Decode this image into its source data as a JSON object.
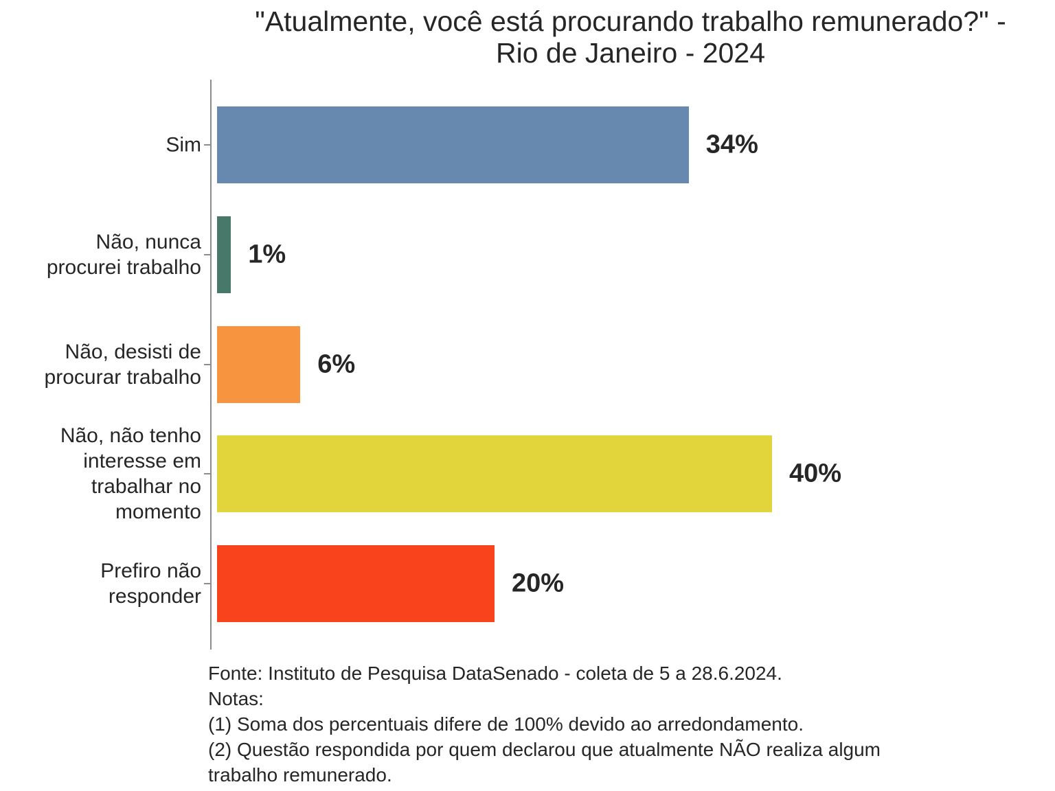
{
  "title": {
    "line1": "\"Atualmente, você está procurando trabalho remunerado?\" -",
    "line2": "Rio de Janeiro - 2024"
  },
  "chart_data": {
    "type": "bar",
    "orientation": "horizontal",
    "title": "\"Atualmente, você está procurando trabalho remunerado?\" - Rio de Janeiro - 2024",
    "categories": [
      "Sim",
      "Não, nunca procurei trabalho",
      "Não, desisti de procurar trabalho",
      "Não, não tenho interesse em trabalhar no momento",
      "Prefiro não responder"
    ],
    "label_lines": [
      [
        "Sim"
      ],
      [
        "Não, nunca",
        "procurei trabalho"
      ],
      [
        "Não, desisti de",
        "procurar trabalho"
      ],
      [
        "Não, não tenho",
        "interesse em",
        "trabalhar no",
        "momento"
      ],
      [
        "Prefiro não",
        "responder"
      ]
    ],
    "values": [
      34,
      1,
      6,
      40,
      20
    ],
    "value_labels": [
      "34%",
      "1%",
      "6%",
      "40%",
      "20%"
    ],
    "bar_colors": [
      "#6789b0",
      "#47786a",
      "#f79440",
      "#e2d53b",
      "#f8431d"
    ],
    "xlim": [
      0,
      60
    ],
    "grid": false,
    "legend": false,
    "axis_color": "#8c8c8c",
    "text_color": "#262626"
  },
  "footer": {
    "lines": [
      "Fonte: Instituto de Pesquisa DataSenado - coleta de 5 a 28.6.2024.",
      "Notas:",
      "(1) Soma dos percentuais difere de 100% devido ao arredondamento.",
      "(2) Questão respondida por quem declarou que atualmente NÃO realiza algum",
      "trabalho remunerado."
    ]
  }
}
